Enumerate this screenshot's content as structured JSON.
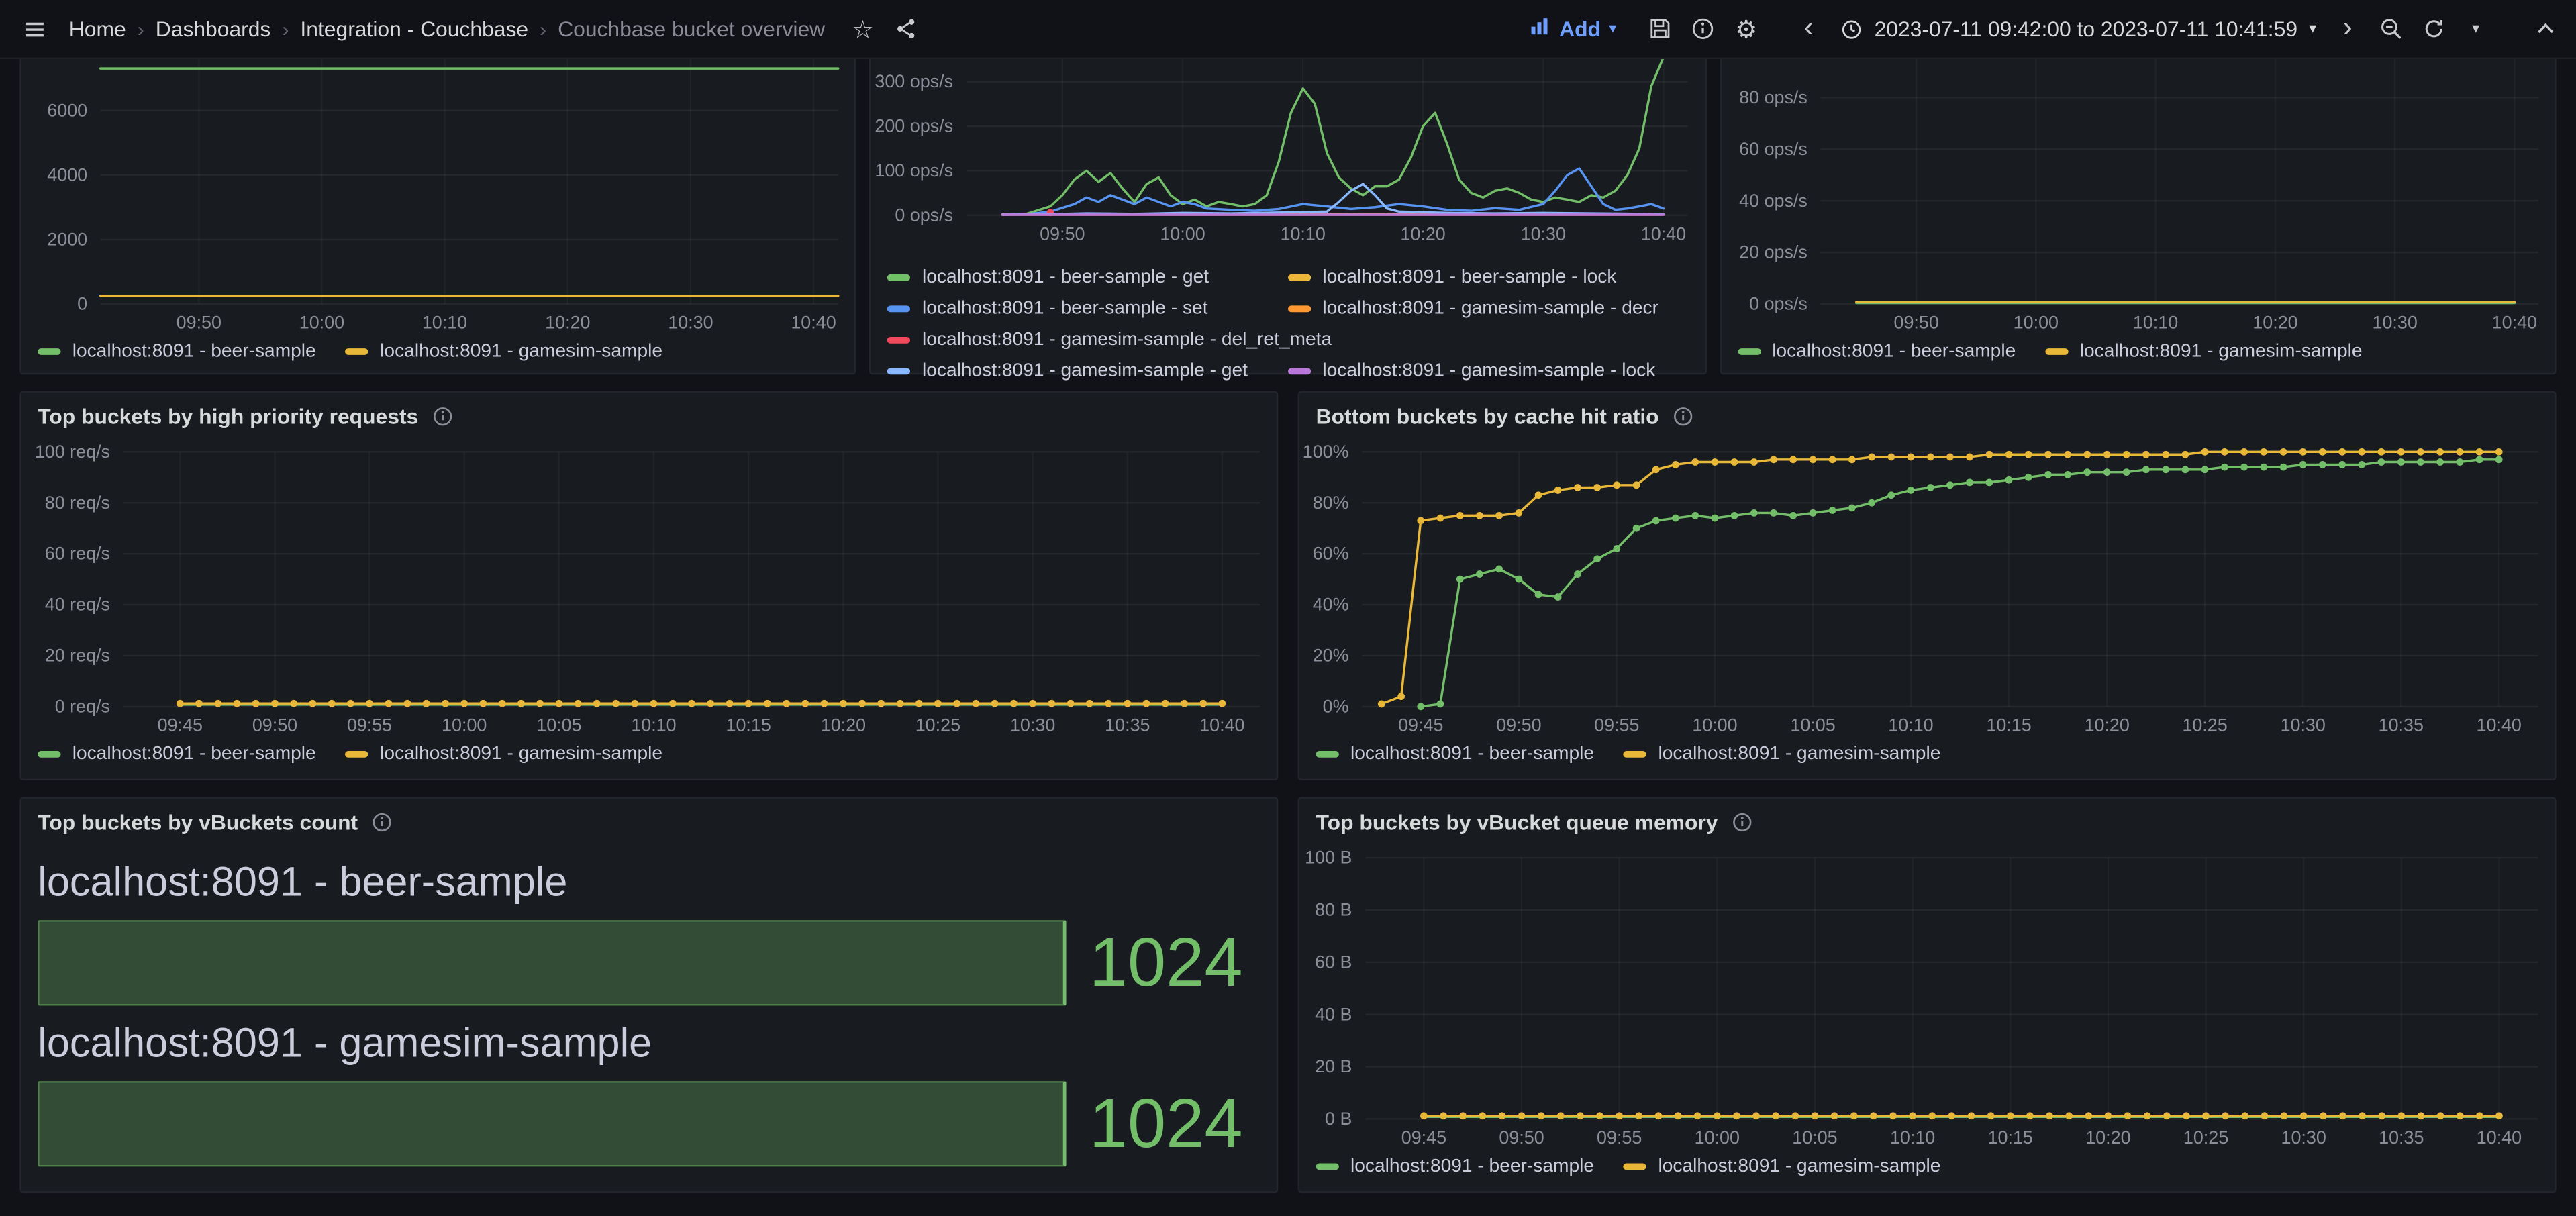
{
  "nav": {
    "breadcrumbs": [
      "Home",
      "Dashboards",
      "Integration - Couchbase",
      "Couchbase bucket overview"
    ],
    "add_label": "Add",
    "time_range": "2023-07-11 09:42:00 to 2023-07-11 10:41:59",
    "icons": {
      "star": "☆",
      "gear": "⚙",
      "caret": "▾",
      "chevron_left": "‹",
      "chevron_right": "›",
      "separator": "›"
    }
  },
  "colors": {
    "bg": "#111217",
    "panel_bg": "#181B1F",
    "panel_border": "#22252B",
    "text": "#D8D9DA",
    "text_dim": "#9DA0A8",
    "accent_blue": "#6E9FFF",
    "green": "#73BF69",
    "yellow": "#EAB839",
    "blue": "#5794F2",
    "orange": "#FF9830",
    "red": "#F2495C",
    "light_blue": "#8AB8FF",
    "purple": "#B877D9"
  },
  "vbuckets": {
    "title": "Top buckets by vBuckets count",
    "rows": [
      {
        "label": "localhost:8091 - beer-sample",
        "value": "1024",
        "pct": 100
      },
      {
        "label": "localhost:8091 - gamesim-sample",
        "value": "1024",
        "pct": 100
      }
    ]
  },
  "chart_data": {
    "items": {
      "type": "line",
      "title": "",
      "xlim": [
        0,
        60
      ],
      "ylim": [
        0,
        8000
      ],
      "y_ticks": [
        0,
        2000,
        4000,
        6000
      ],
      "y_suffix": "",
      "x_ticks": [
        {
          "m": 8,
          "label": "09:50"
        },
        {
          "m": 18,
          "label": "10:00"
        },
        {
          "m": 28,
          "label": "10:10"
        },
        {
          "m": 38,
          "label": "10:20"
        },
        {
          "m": 48,
          "label": "10:30"
        },
        {
          "m": 58,
          "label": "10:40"
        }
      ],
      "series": [
        {
          "name": "localhost:8091 - beer-sample",
          "color": "#73BF69",
          "points": [
            [
              0,
              7300
            ],
            [
              60,
              7300
            ]
          ]
        },
        {
          "name": "localhost:8091 - gamesim-sample",
          "color": "#EAB839",
          "points": [
            [
              0,
              250
            ],
            [
              60,
              250
            ]
          ]
        }
      ]
    },
    "ops": {
      "type": "line",
      "title": "",
      "xlim": [
        0,
        60
      ],
      "ylim": [
        0,
        380
      ],
      "y_ticks": [
        0,
        100,
        200,
        300
      ],
      "y_suffix": " ops/s",
      "x_ticks": [
        {
          "m": 8,
          "label": "09:50"
        },
        {
          "m": 18,
          "label": "10:00"
        },
        {
          "m": 28,
          "label": "10:10"
        },
        {
          "m": 38,
          "label": "10:20"
        },
        {
          "m": 48,
          "label": "10:30"
        },
        {
          "m": 58,
          "label": "10:40"
        }
      ],
      "series": [
        {
          "name": "localhost:8091 - beer-sample - get",
          "color": "#73BF69",
          "points": [
            [
              3,
              1
            ],
            [
              5,
              3
            ],
            [
              7,
              20
            ],
            [
              8,
              45
            ],
            [
              9,
              80
            ],
            [
              10,
              100
            ],
            [
              11,
              75
            ],
            [
              12,
              95
            ],
            [
              13,
              60
            ],
            [
              14,
              30
            ],
            [
              15,
              70
            ],
            [
              16,
              85
            ],
            [
              17,
              45
            ],
            [
              18,
              25
            ],
            [
              19,
              35
            ],
            [
              20,
              20
            ],
            [
              21,
              30
            ],
            [
              22,
              25
            ],
            [
              23,
              20
            ],
            [
              24,
              25
            ],
            [
              25,
              45
            ],
            [
              26,
              120
            ],
            [
              27,
              230
            ],
            [
              28,
              285
            ],
            [
              29,
              250
            ],
            [
              30,
              140
            ],
            [
              31,
              85
            ],
            [
              32,
              60
            ],
            [
              33,
              45
            ],
            [
              34,
              65
            ],
            [
              35,
              65
            ],
            [
              36,
              80
            ],
            [
              37,
              130
            ],
            [
              38,
              200
            ],
            [
              39,
              230
            ],
            [
              40,
              160
            ],
            [
              41,
              80
            ],
            [
              42,
              50
            ],
            [
              43,
              40
            ],
            [
              44,
              55
            ],
            [
              45,
              60
            ],
            [
              46,
              50
            ],
            [
              47,
              35
            ],
            [
              48,
              30
            ],
            [
              49,
              40
            ],
            [
              50,
              35
            ],
            [
              51,
              30
            ],
            [
              52,
              45
            ],
            [
              53,
              40
            ],
            [
              54,
              55
            ],
            [
              55,
              90
            ],
            [
              56,
              150
            ],
            [
              57,
              290
            ],
            [
              58,
              355
            ]
          ]
        },
        {
          "name": "localhost:8091 - beer-sample - lock",
          "color": "#EAB839",
          "points": [
            [
              3,
              2
            ],
            [
              58,
              2
            ]
          ]
        },
        {
          "name": "localhost:8091 - beer-sample - set",
          "color": "#5794F2",
          "points": [
            [
              3,
              1
            ],
            [
              5,
              2
            ],
            [
              7,
              8
            ],
            [
              9,
              25
            ],
            [
              10,
              40
            ],
            [
              11,
              30
            ],
            [
              12,
              45
            ],
            [
              13,
              35
            ],
            [
              14,
              25
            ],
            [
              15,
              40
            ],
            [
              16,
              30
            ],
            [
              17,
              20
            ],
            [
              18,
              30
            ],
            [
              19,
              25
            ],
            [
              20,
              15
            ],
            [
              22,
              12
            ],
            [
              24,
              10
            ],
            [
              26,
              14
            ],
            [
              28,
              25
            ],
            [
              30,
              20
            ],
            [
              32,
              14
            ],
            [
              34,
              18
            ],
            [
              36,
              25
            ],
            [
              38,
              20
            ],
            [
              40,
              12
            ],
            [
              42,
              10
            ],
            [
              44,
              16
            ],
            [
              46,
              12
            ],
            [
              48,
              25
            ],
            [
              49,
              55
            ],
            [
              50,
              90
            ],
            [
              51,
              105
            ],
            [
              52,
              65
            ],
            [
              53,
              25
            ],
            [
              54,
              12
            ],
            [
              55,
              15
            ],
            [
              56,
              20
            ],
            [
              57,
              25
            ],
            [
              58,
              15
            ]
          ]
        },
        {
          "name": "localhost:8091 - gamesim-sample - decr",
          "color": "#FF9830",
          "points": [
            [
              3,
              1
            ],
            [
              58,
              1
            ]
          ]
        },
        {
          "name": "localhost:8091 - gamesim-sample - del_ret_meta",
          "color": "#F2495C",
          "points": [
            [
              7,
              6
            ]
          ],
          "markers": true
        },
        {
          "name": "localhost:8091 - gamesim-sample - get",
          "color": "#8AB8FF",
          "points": [
            [
              3,
              1
            ],
            [
              6,
              2
            ],
            [
              10,
              4
            ],
            [
              14,
              3
            ],
            [
              18,
              5
            ],
            [
              22,
              4
            ],
            [
              26,
              6
            ],
            [
              30,
              8
            ],
            [
              31,
              30
            ],
            [
              32,
              55
            ],
            [
              33,
              70
            ],
            [
              34,
              45
            ],
            [
              35,
              15
            ],
            [
              36,
              8
            ],
            [
              40,
              5
            ],
            [
              44,
              4
            ],
            [
              48,
              5
            ],
            [
              52,
              4
            ],
            [
              56,
              3
            ],
            [
              58,
              2
            ]
          ]
        },
        {
          "name": "localhost:8091 - gamesim-sample - lock",
          "color": "#B877D9",
          "points": [
            [
              3,
              1
            ],
            [
              58,
              1
            ]
          ]
        }
      ]
    },
    "misc": {
      "type": "line",
      "title": "",
      "xlim": [
        0,
        60
      ],
      "ylim": [
        0,
        100
      ],
      "y_ticks": [
        0,
        20,
        40,
        60,
        80
      ],
      "y_suffix": " ops/s",
      "x_ticks": [
        {
          "m": 8,
          "label": "09:50"
        },
        {
          "m": 18,
          "label": "10:00"
        },
        {
          "m": 28,
          "label": "10:10"
        },
        {
          "m": 38,
          "label": "10:20"
        },
        {
          "m": 48,
          "label": "10:30"
        },
        {
          "m": 58,
          "label": "10:40"
        }
      ],
      "series": [
        {
          "name": "localhost:8091 - beer-sample",
          "color": "#73BF69",
          "points": [
            [
              3,
              0.4
            ],
            [
              58,
              0.4
            ]
          ]
        },
        {
          "name": "localhost:8091 - gamesim-sample",
          "color": "#EAB839",
          "points": [
            [
              3,
              0.8
            ],
            [
              58,
              0.8
            ]
          ]
        }
      ]
    },
    "high_priority": {
      "type": "line",
      "title": "Top buckets by high priority requests",
      "xlim": [
        0,
        60
      ],
      "ylim": [
        0,
        100
      ],
      "y_ticks": [
        0,
        20,
        40,
        60,
        80,
        100
      ],
      "y_suffix": " req/s",
      "x_ticks": [
        {
          "m": 3,
          "label": "09:45"
        },
        {
          "m": 8,
          "label": "09:50"
        },
        {
          "m": 13,
          "label": "09:55"
        },
        {
          "m": 18,
          "label": "10:00"
        },
        {
          "m": 23,
          "label": "10:05"
        },
        {
          "m": 28,
          "label": "10:10"
        },
        {
          "m": 33,
          "label": "10:15"
        },
        {
          "m": 38,
          "label": "10:20"
        },
        {
          "m": 43,
          "label": "10:25"
        },
        {
          "m": 48,
          "label": "10:30"
        },
        {
          "m": 53,
          "label": "10:35"
        },
        {
          "m": 58,
          "label": "10:40"
        }
      ],
      "series": [
        {
          "name": "localhost:8091 - beer-sample",
          "color": "#73BF69",
          "points": [
            [
              3,
              0.8
            ],
            [
              58,
              0.8
            ]
          ]
        },
        {
          "name": "localhost:8091 - gamesim-sample",
          "color": "#EAB839",
          "points": [
            [
              3,
              1.2
            ],
            [
              58,
              1.2
            ]
          ],
          "marker_step": 1
        }
      ]
    },
    "cache_hit": {
      "type": "line",
      "title": "Bottom buckets by cache hit ratio",
      "xlim": [
        0,
        60
      ],
      "ylim": [
        0,
        100
      ],
      "y_ticks": [
        0,
        20,
        40,
        60,
        80,
        100
      ],
      "y_suffix": "%",
      "x_ticks": [
        {
          "m": 3,
          "label": "09:45"
        },
        {
          "m": 8,
          "label": "09:50"
        },
        {
          "m": 13,
          "label": "09:55"
        },
        {
          "m": 18,
          "label": "10:00"
        },
        {
          "m": 23,
          "label": "10:05"
        },
        {
          "m": 28,
          "label": "10:10"
        },
        {
          "m": 33,
          "label": "10:15"
        },
        {
          "m": 38,
          "label": "10:20"
        },
        {
          "m": 43,
          "label": "10:25"
        },
        {
          "m": 48,
          "label": "10:30"
        },
        {
          "m": 53,
          "label": "10:35"
        },
        {
          "m": 58,
          "label": "10:40"
        }
      ],
      "series": [
        {
          "name": "localhost:8091 - beer-sample",
          "color": "#73BF69",
          "markers": true,
          "start": 3,
          "values": [
            0,
            1,
            50,
            52,
            54,
            50,
            44,
            43,
            52,
            58,
            62,
            70,
            73,
            74,
            75,
            74,
            75,
            76,
            76,
            75,
            76,
            77,
            78,
            80,
            83,
            85,
            86,
            87,
            88,
            88,
            89,
            90,
            91,
            91,
            92,
            92,
            92,
            93,
            93,
            93,
            93,
            94,
            94,
            94,
            94,
            95,
            95,
            95,
            95,
            96,
            96,
            96,
            96,
            96,
            97,
            97
          ]
        },
        {
          "name": "localhost:8091 - gamesim-sample",
          "color": "#EAB839",
          "markers": true,
          "start": 1,
          "values": [
            1,
            4,
            73,
            74,
            75,
            75,
            75,
            76,
            83,
            85,
            86,
            86,
            87,
            87,
            93,
            95,
            96,
            96,
            96,
            96,
            97,
            97,
            97,
            97,
            97,
            98,
            98,
            98,
            98,
            98,
            98,
            99,
            99,
            99,
            99,
            99,
            99,
            99,
            99,
            99,
            99,
            99,
            100,
            100,
            100,
            100,
            100,
            100,
            100,
            100,
            100,
            100,
            100,
            100,
            100,
            100,
            100,
            100
          ]
        }
      ]
    },
    "queue_memory": {
      "type": "line",
      "title": "Top buckets by vBucket queue memory",
      "xlim": [
        0,
        60
      ],
      "ylim": [
        0,
        100
      ],
      "y_ticks": [
        0,
        20,
        40,
        60,
        80,
        100
      ],
      "y_suffix": " B",
      "x_ticks": [
        {
          "m": 3,
          "label": "09:45"
        },
        {
          "m": 8,
          "label": "09:50"
        },
        {
          "m": 13,
          "label": "09:55"
        },
        {
          "m": 18,
          "label": "10:00"
        },
        {
          "m": 23,
          "label": "10:05"
        },
        {
          "m": 28,
          "label": "10:10"
        },
        {
          "m": 33,
          "label": "10:15"
        },
        {
          "m": 38,
          "label": "10:20"
        },
        {
          "m": 43,
          "label": "10:25"
        },
        {
          "m": 48,
          "label": "10:30"
        },
        {
          "m": 53,
          "label": "10:35"
        },
        {
          "m": 58,
          "label": "10:40"
        }
      ],
      "series": [
        {
          "name": "localhost:8091 - beer-sample",
          "color": "#73BF69",
          "points": [
            [
              3,
              0.8
            ],
            [
              58,
              0.8
            ]
          ]
        },
        {
          "name": "localhost:8091 - gamesim-sample",
          "color": "#EAB839",
          "points": [
            [
              3,
              1.2
            ],
            [
              58,
              1.2
            ]
          ],
          "marker_step": 1
        }
      ]
    }
  }
}
